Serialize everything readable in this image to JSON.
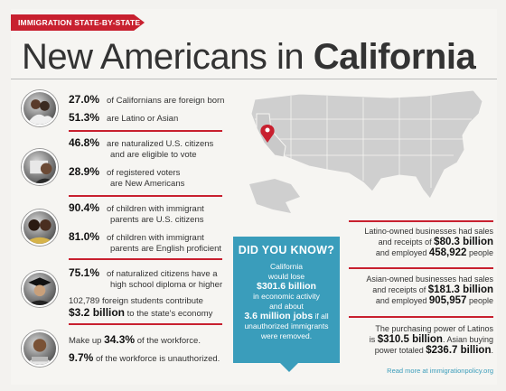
{
  "header": {
    "ribbon": "IMMIGRATION STATE-BY-STATE",
    "title_light": "New Americans in",
    "title_strong": "California"
  },
  "stats": {
    "s1_num": "27.0%",
    "s1_text": "of Californians are foreign born",
    "s2_num": "51.3%",
    "s2_text": "are Latino or Asian",
    "s3_num": "46.8%",
    "s3_text_1": "are naturalized U.S. citizens",
    "s3_text_2": "and are eligible to vote",
    "s4_num": "28.9%",
    "s4_text_1": "of registered voters",
    "s4_text_2": "are New Americans",
    "s5_num": "90.4%",
    "s5_text_1": "of children with immigrant",
    "s5_text_2": "parents are U.S. citizens",
    "s6_num": "81.0%",
    "s6_text_1": "of children with immigrant",
    "s6_text_2": "parents are English proficient",
    "s7_num": "75.1%",
    "s7_text_1": "of naturalized citizens have a",
    "s7_text_2": "high school diploma or higher",
    "s8_pre": "102,789 foreign students contribute",
    "s8_big": "$3.2 billion",
    "s8_post": "to the state's economy",
    "s9_pre": "Make up",
    "s9_big": "34.3%",
    "s9_post": "of the workforce.",
    "s10_big": "9.7%",
    "s10_post": "of the workforce is unauthorized."
  },
  "did_you_know": {
    "heading": "DID YOU KNOW?",
    "l1": "California",
    "l2": "would lose",
    "l3": "$301.6 billion",
    "l4": "in economic activity",
    "l5": "and about",
    "l6_big": "3.6 million jobs",
    "l6_post": "if all",
    "l7": "unauthorized immigrants",
    "l8": "were removed."
  },
  "business": {
    "b1_l1": "Latino-owned businesses had sales",
    "b1_l2": "and receipts of",
    "b1_big": "$80.3 billion",
    "b1_l3": "and employed",
    "b1_big2": "458,922",
    "b1_l4": "people",
    "b2_l1": "Asian-owned businesses had sales",
    "b2_l2": "and receipts of",
    "b2_big": "$181.3 billion",
    "b2_l3": "and employed",
    "b2_big2": "905,957",
    "b2_l4": "people",
    "b3_l1": "The purchasing power of Latinos",
    "b3_l2": "is",
    "b3_big": "$310.5 billion",
    "b3_l3": ". Asian buying",
    "b3_l4": "power totaled",
    "b3_big2": "$236.7 billion",
    "b3_l5": "."
  },
  "footer": {
    "more": "Read more at immigrationpolicy.org"
  },
  "colors": {
    "accent_red": "#c8202f",
    "accent_blue": "#3a9dbb",
    "map_gray": "#cfcfcf"
  }
}
